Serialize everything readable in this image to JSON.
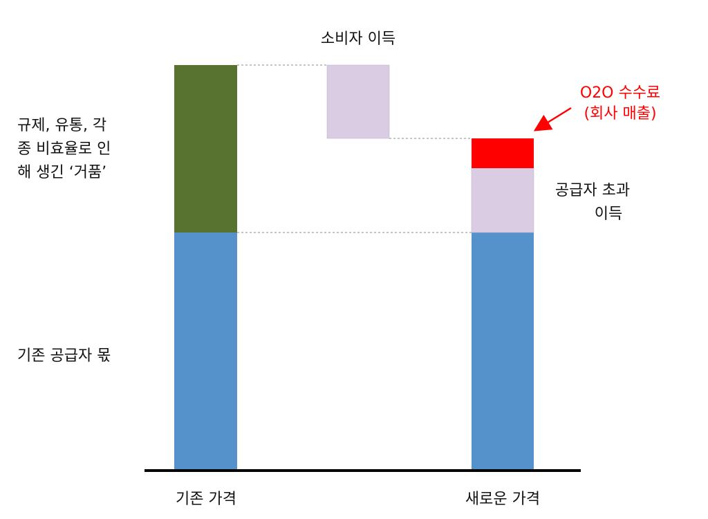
{
  "header": {
    "title": "소비자 이득"
  },
  "annotations": {
    "fee": [
      "O2O 수수료",
      "(회사 매출)"
    ],
    "bubble": [
      "규제, 유통, 각",
      "종 비효율로 인",
      "해 생긴 ‘거품’"
    ],
    "supplier_surplus": [
      "공급자 초과",
      "이득"
    ],
    "supplier_share": "기존 공급자 몫"
  },
  "columns": [
    "기존 가격",
    "새로운 가격"
  ]
}
